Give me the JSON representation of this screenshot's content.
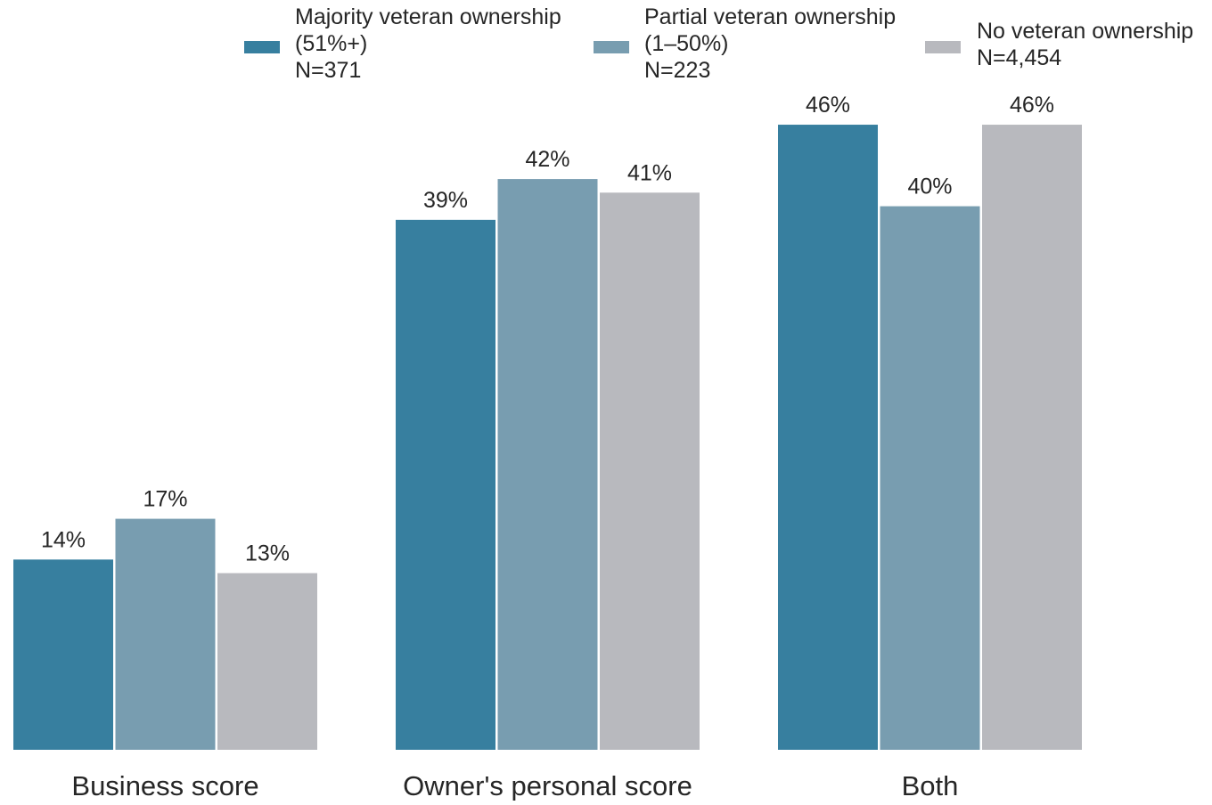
{
  "chart_data": {
    "type": "bar",
    "title": "",
    "xlabel": "",
    "ylabel": "",
    "ylim": [
      0,
      46
    ],
    "grid": false,
    "legend_position": "top",
    "categories": [
      "Business score",
      "Owner's personal score",
      "Both"
    ],
    "series": [
      {
        "name": "Majority veteran ownership (51%+) N=371",
        "legend_lines": [
          "Majority veteran ownership",
          "(51%+)",
          "N=371"
        ],
        "color": "#377f9f",
        "values": [
          14,
          39,
          46
        ],
        "labels": [
          "14%",
          "39%",
          "46%"
        ]
      },
      {
        "name": "Partial veteran ownership (1–50%) N=223",
        "legend_lines": [
          "Partial veteran ownership",
          "(1–50%)",
          "N=223"
        ],
        "color": "#789db0",
        "values": [
          17,
          42,
          40
        ],
        "labels": [
          "17%",
          "42%",
          "40%"
        ]
      },
      {
        "name": "No veteran ownership N=4,454",
        "legend_lines": [
          "No veteran ownership",
          "N=4,454"
        ],
        "color": "#b8b9be",
        "values": [
          13,
          41,
          46
        ],
        "labels": [
          "13%",
          "41%",
          "46%"
        ]
      }
    ]
  }
}
